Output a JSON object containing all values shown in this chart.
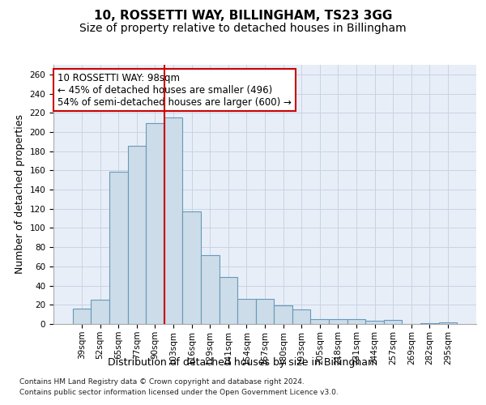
{
  "title": "10, ROSSETTI WAY, BILLINGHAM, TS23 3GG",
  "subtitle": "Size of property relative to detached houses in Billingham",
  "xlabel": "Distribution of detached houses by size in Billingham",
  "ylabel": "Number of detached properties",
  "categories": [
    "39sqm",
    "52sqm",
    "65sqm",
    "77sqm",
    "90sqm",
    "103sqm",
    "116sqm",
    "129sqm",
    "141sqm",
    "154sqm",
    "167sqm",
    "180sqm",
    "193sqm",
    "205sqm",
    "218sqm",
    "231sqm",
    "244sqm",
    "257sqm",
    "269sqm",
    "282sqm",
    "295sqm"
  ],
  "values": [
    16,
    25,
    159,
    186,
    209,
    215,
    117,
    72,
    49,
    26,
    26,
    19,
    15,
    5,
    5,
    5,
    3,
    4,
    0,
    1,
    2
  ],
  "bar_color": "#ccdce8",
  "bar_edge_color": "#6699bb",
  "vline_x": 4.5,
  "vline_color": "#cc0000",
  "annotation_line1": "10 ROSSETTI WAY: 98sqm",
  "annotation_line2": "← 45% of detached houses are smaller (496)",
  "annotation_line3": "54% of semi-detached houses are larger (600) →",
  "annotation_box_color": "#ffffff",
  "annotation_box_edge_color": "#cc0000",
  "ylim": [
    0,
    270
  ],
  "yticks": [
    0,
    20,
    40,
    60,
    80,
    100,
    120,
    140,
    160,
    180,
    200,
    220,
    240,
    260
  ],
  "grid_color": "#c8d4e4",
  "background_color": "#e8eef8",
  "footer_line1": "Contains HM Land Registry data © Crown copyright and database right 2024.",
  "footer_line2": "Contains public sector information licensed under the Open Government Licence v3.0.",
  "title_fontsize": 11,
  "subtitle_fontsize": 10,
  "xlabel_fontsize": 9,
  "ylabel_fontsize": 9,
  "tick_fontsize": 7.5,
  "annotation_fontsize": 8.5,
  "footer_fontsize": 6.5
}
